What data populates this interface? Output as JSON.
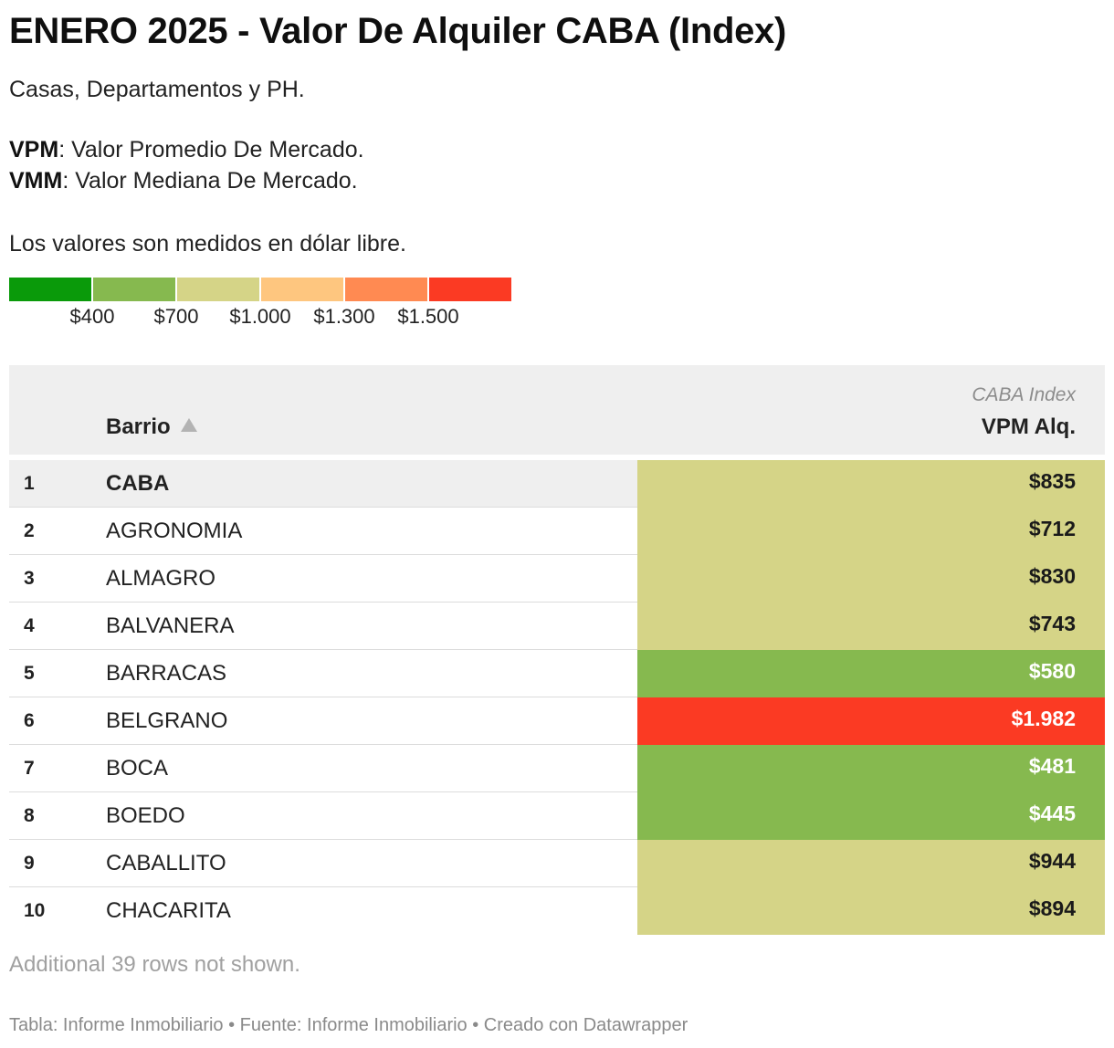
{
  "title": "ENERO 2025 - Valor De Alquiler CABA (Index)",
  "intro": {
    "line1": "Casas, Departamentos y PH.",
    "vpm_abbr": "VPM",
    "vpm_text": ": Valor Promedio De Mercado.",
    "vmm_abbr": "VMM",
    "vmm_text": ": Valor Mediana De Mercado.",
    "line4": "Los valores son medidos en dólar libre."
  },
  "legend": {
    "colors": [
      "#0a9a0a",
      "#86b94f",
      "#d5d487",
      "#fec67f",
      "#ff8a52",
      "#fb3a23"
    ],
    "ticks": [
      "$400",
      "$700",
      "$1.000",
      "$1.300",
      "$1.500"
    ],
    "tick_values": [
      400,
      700,
      1000,
      1300,
      1500
    ]
  },
  "table": {
    "col_barrio": "Barrio",
    "col_group": "CABA Index",
    "col_vpm": "VPM Alq.",
    "sort_icon": "sort-ascending-icon",
    "more_rows": "Additional 39 rows not shown."
  },
  "footer": "Tabla: Informe Inmobiliario • Fuente: Informe Inmobiliario • Creado con Datawrapper",
  "chart_data": {
    "type": "table",
    "title": "ENERO 2025 - Valor De Alquiler CABA (Index)",
    "columns": [
      "#",
      "Barrio",
      "VPM Alq."
    ],
    "rows": [
      {
        "rank": "1",
        "barrio": "CABA",
        "display": "$835",
        "value": 835
      },
      {
        "rank": "2",
        "barrio": "AGRONOMIA",
        "display": "$712",
        "value": 712
      },
      {
        "rank": "3",
        "barrio": "ALMAGRO",
        "display": "$830",
        "value": 830
      },
      {
        "rank": "4",
        "barrio": "BALVANERA",
        "display": "$743",
        "value": 743
      },
      {
        "rank": "5",
        "barrio": "BARRACAS",
        "display": "$580",
        "value": 580
      },
      {
        "rank": "6",
        "barrio": "BELGRANO",
        "display": "$1.982",
        "value": 1982
      },
      {
        "rank": "7",
        "barrio": "BOCA",
        "display": "$481",
        "value": 481
      },
      {
        "rank": "8",
        "barrio": "BOEDO",
        "display": "$445",
        "value": 445
      },
      {
        "rank": "9",
        "barrio": "CABALLITO",
        "display": "$944",
        "value": 944
      },
      {
        "rank": "10",
        "barrio": "CHACARITA",
        "display": "$894",
        "value": 894
      }
    ]
  }
}
